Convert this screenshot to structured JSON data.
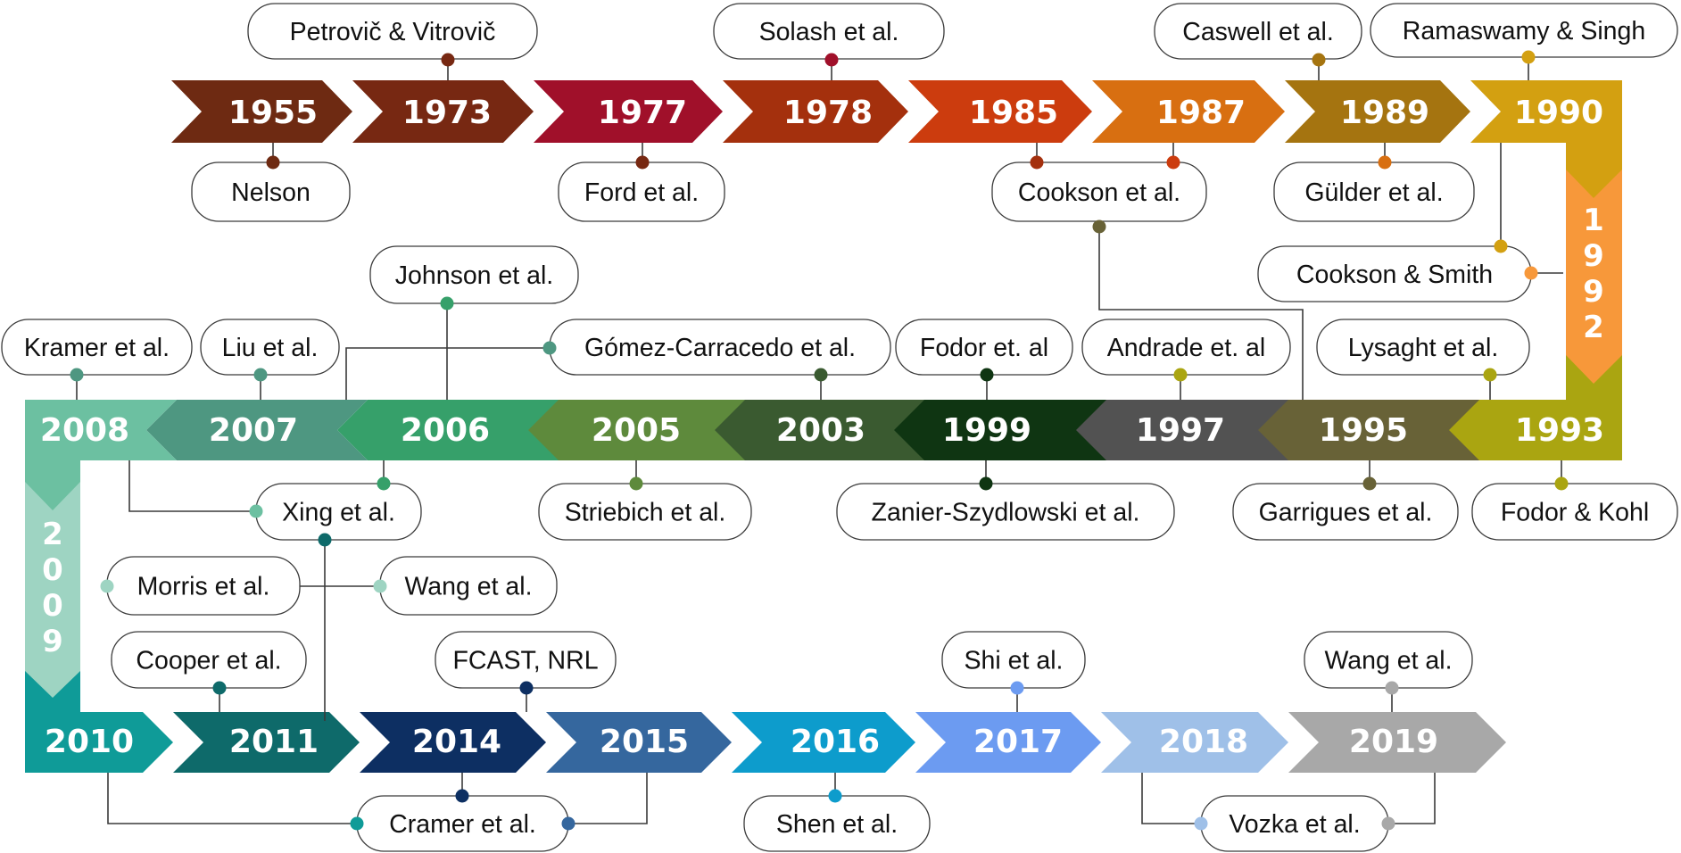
{
  "timeline": {
    "row1": [
      {
        "year": "1955",
        "color": "#6e2a12"
      },
      {
        "year": "1973",
        "color": "#772812"
      },
      {
        "year": "1977",
        "color": "#a0102a"
      },
      {
        "year": "1978",
        "color": "#a4300d"
      },
      {
        "year": "1985",
        "color": "#cc3c0e"
      },
      {
        "year": "1987",
        "color": "#d86f11"
      },
      {
        "year": "1989",
        "color": "#a57410"
      },
      {
        "year": "1990",
        "color": "#d3a011"
      }
    ],
    "vertical1": {
      "digits": [
        "1",
        "9",
        "9",
        "2"
      ],
      "color": "#f7983a"
    },
    "row2": [
      {
        "year": "1993",
        "color": "#aaa511"
      },
      {
        "year": "1995",
        "color": "#686237"
      },
      {
        "year": "1997",
        "color": "#525252"
      },
      {
        "year": "1999",
        "color": "#0f3512"
      },
      {
        "year": "2003",
        "color": "#3a5a30"
      },
      {
        "year": "2005",
        "color": "#5e8a3c"
      },
      {
        "year": "2006",
        "color": "#36a06a"
      },
      {
        "year": "2007",
        "color": "#4e9781"
      },
      {
        "year": "2008",
        "color": "#6cc0a1"
      }
    ],
    "vertical2": {
      "digits": [
        "2",
        "0",
        "0",
        "9"
      ],
      "color": "#9ed4c2"
    },
    "row3": [
      {
        "year": "2010",
        "color": "#0f9b98"
      },
      {
        "year": "2011",
        "color": "#0e6a6a"
      },
      {
        "year": "2014",
        "color": "#0d2f62"
      },
      {
        "year": "2015",
        "color": "#35679e"
      },
      {
        "year": "2016",
        "color": "#0d9ccc"
      },
      {
        "year": "2017",
        "color": "#6c9bf1"
      },
      {
        "year": "2018",
        "color": "#9fc0e8"
      },
      {
        "year": "2019",
        "color": "#a8a8a8"
      }
    ]
  },
  "authors": {
    "petrovic": "Petrovič & Vitrovič",
    "solash": "Solash et al.",
    "caswell": "Caswell et al.",
    "ramaswamy": "Ramaswamy & Singh",
    "nelson": "Nelson",
    "ford": "Ford et al.",
    "cookson": "Cookson et al.",
    "gulder": "Gülder et al.",
    "cookson_smith": "Cookson & Smith",
    "johnson": "Johnson et al.",
    "kramer": "Kramer et al.",
    "liu": "Liu et al.",
    "gomez": "Gómez-Carracedo et al.",
    "fodor_et": "Fodor et. al",
    "andrade": "Andrade et. al",
    "lysaght": "Lysaght et al.",
    "xing": "Xing et al.",
    "striebich": "Striebich et al.",
    "zanier": "Zanier-Szydlowski et al.",
    "garrigues": "Garrigues et al.",
    "fodor_kohl": "Fodor & Kohl",
    "morris": "Morris et al.",
    "wang_2009": "Wang et al.",
    "cooper": "Cooper et al.",
    "fcast": "FCAST, NRL",
    "shi": "Shi et al.",
    "wang_2019": "Wang et al.",
    "cramer": "Cramer et al.",
    "shen": "Shen et al.",
    "vozka": "Vozka et al."
  }
}
